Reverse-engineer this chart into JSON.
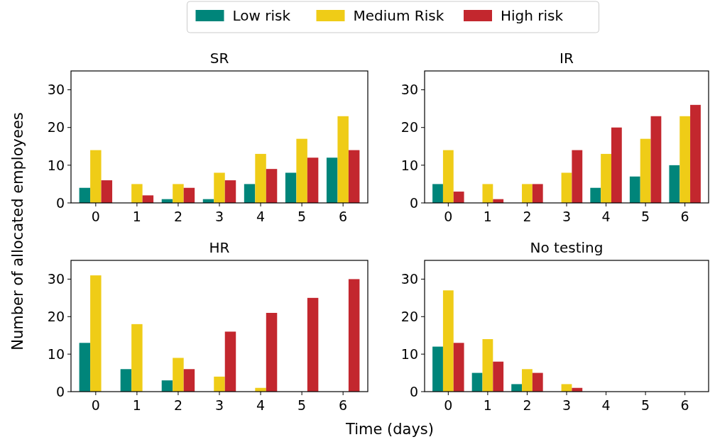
{
  "chart_data": [
    {
      "type": "bar",
      "title": "SR",
      "ylabel": "Number of allocated employees",
      "categories": [
        "0",
        "1",
        "2",
        "3",
        "4",
        "5",
        "6"
      ],
      "ylim": [
        0,
        35
      ],
      "yticks": [
        0,
        10,
        20,
        30
      ],
      "legend": "top",
      "series": [
        {
          "name": "Low risk",
          "color": "#00857a",
          "values": [
            4,
            0,
            1,
            1,
            5,
            8,
            12
          ]
        },
        {
          "name": "Medium Risk",
          "color": "#efcc17",
          "values": [
            14,
            5,
            5,
            8,
            13,
            17,
            23
          ]
        },
        {
          "name": "High risk",
          "color": "#c3272e",
          "values": [
            6,
            2,
            4,
            6,
            9,
            12,
            14
          ]
        }
      ]
    },
    {
      "type": "bar",
      "title": "IR",
      "categories": [
        "0",
        "1",
        "2",
        "3",
        "4",
        "5",
        "6"
      ],
      "ylim": [
        0,
        35
      ],
      "yticks": [
        0,
        10,
        20,
        30
      ],
      "series": [
        {
          "color": "#00857a",
          "values": [
            5,
            0,
            0,
            0,
            4,
            7,
            10
          ]
        },
        {
          "color": "#efcc17",
          "values": [
            14,
            5,
            5,
            8,
            13,
            17,
            23
          ]
        },
        {
          "color": "#c3272e",
          "values": [
            3,
            1,
            5,
            14,
            20,
            23,
            26
          ]
        }
      ]
    },
    {
      "type": "bar",
      "title": "HR",
      "xlabel": "Time (days)",
      "categories": [
        "0",
        "1",
        "2",
        "3",
        "4",
        "5",
        "6"
      ],
      "ylim": [
        0,
        35
      ],
      "yticks": [
        0,
        10,
        20,
        30
      ],
      "series": [
        {
          "color": "#00857a",
          "values": [
            13,
            6,
            3,
            0,
            0,
            0,
            0
          ]
        },
        {
          "color": "#efcc17",
          "values": [
            31,
            18,
            9,
            4,
            1,
            0,
            0
          ]
        },
        {
          "color": "#c3272e",
          "values": [
            0,
            0,
            6,
            16,
            21,
            25,
            30
          ]
        }
      ]
    },
    {
      "type": "bar",
      "title": "No testing",
      "categories": [
        "0",
        "1",
        "2",
        "3",
        "4",
        "5",
        "6"
      ],
      "ylim": [
        0,
        35
      ],
      "yticks": [
        0,
        10,
        20,
        30
      ],
      "series": [
        {
          "color": "#00857a",
          "values": [
            12,
            5,
            2,
            0,
            0,
            0,
            0
          ]
        },
        {
          "color": "#efcc17",
          "values": [
            27,
            14,
            6,
            2,
            0,
            0,
            0
          ]
        },
        {
          "color": "#c3272e",
          "values": [
            13,
            8,
            5,
            1,
            0,
            0,
            0
          ]
        }
      ]
    }
  ]
}
